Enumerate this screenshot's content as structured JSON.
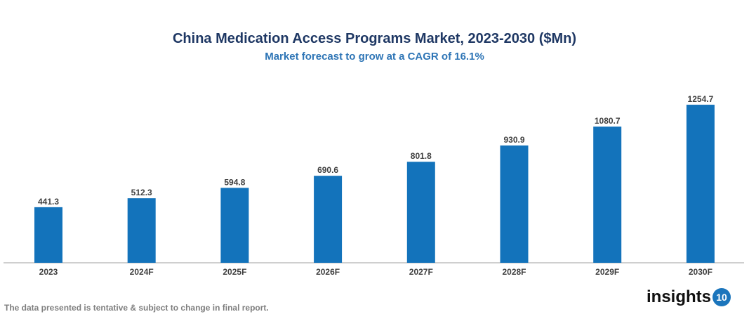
{
  "chart_data": {
    "type": "bar",
    "title": "China Medication Access Programs Market, 2023-2030 ($Mn)",
    "subtitle": "Market forecast to grow at a CAGR of 16.1%",
    "categories": [
      "2023",
      "2024F",
      "2025F",
      "2026F",
      "2027F",
      "2028F",
      "2029F",
      "2030F"
    ],
    "values": [
      441.3,
      512.3,
      594.8,
      690.6,
      801.8,
      930.9,
      1080.7,
      1254.7
    ],
    "xlabel": "",
    "ylabel": "",
    "ylim": [
      0,
      1400
    ],
    "grid": false,
    "bar_color": "#1373bb",
    "data_labels": true
  },
  "footer": {
    "disclaimer": "The data presented is tentative & subject to change in final report.",
    "logo_text": "insights",
    "logo_number": "10"
  }
}
